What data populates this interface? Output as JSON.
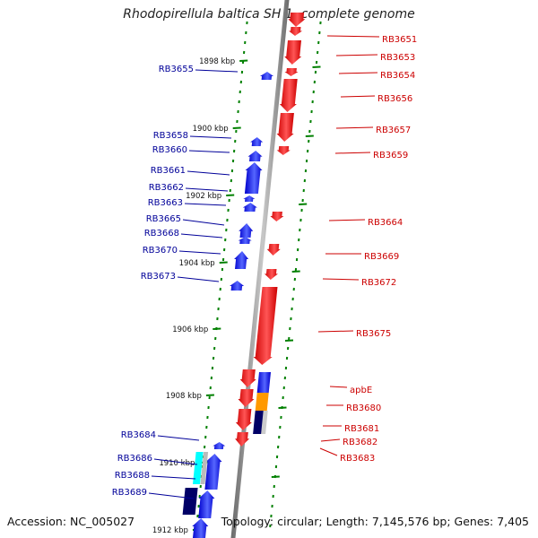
{
  "title": "Rhodopirellula baltica SH 1, complete genome",
  "footer": {
    "accession": "Accession: NC_005027",
    "summary": "Topology: circular; Length: 7,145,576 bp; Genes: 7,405"
  },
  "colors": {
    "forward_gene": "#ff0000",
    "reverse_gene": "#0000ff",
    "forward_label": "#cc0000",
    "reverse_label": "#000099",
    "tick": "#008000",
    "backbone": "#888888",
    "highlight_orange": "#ff9900",
    "highlight_cyan": "#00ffff",
    "highlight_navy": "#000066"
  },
  "kbp_ticks": [
    "1898 kbp",
    "1900 kbp",
    "1902 kbp",
    "1904 kbp",
    "1906 kbp",
    "1908 kbp",
    "1910 kbp",
    "1912 kbp"
  ],
  "forward_labels": [
    "RB3651",
    "RB3653",
    "RB3654",
    "RB3656",
    "RB3657",
    "RB3659",
    "RB3664",
    "RB3669",
    "RB3672",
    "RB3675",
    "apbE",
    "RB3680",
    "RB3681",
    "RB3682",
    "RB3683"
  ],
  "reverse_labels": [
    "RB3655",
    "RB3658",
    "RB3660",
    "RB3661",
    "RB3662",
    "RB3663",
    "RB3665",
    "RB3668",
    "RB3670",
    "RB3673",
    "RB3684",
    "RB3686",
    "RB3688",
    "RB3689"
  ]
}
